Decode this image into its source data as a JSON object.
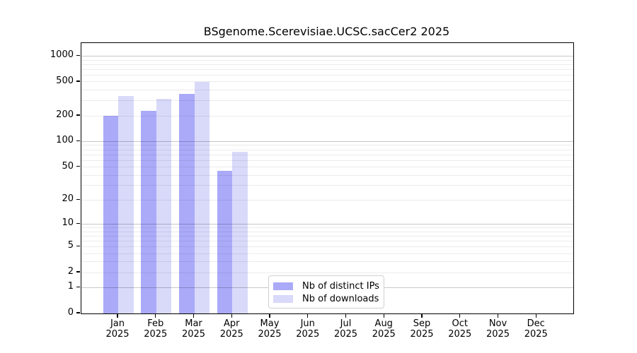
{
  "title": "BSgenome.Scerevisiae.UCSC.sacCer2 2025",
  "chart_data": {
    "type": "bar",
    "title": "BSgenome.Scerevisiae.UCSC.sacCer2 2025",
    "categories": [
      "Jan 2025",
      "Feb 2025",
      "Mar 2025",
      "Apr 2025",
      "May 2025",
      "Jun 2025",
      "Jul 2025",
      "Aug 2025",
      "Sep 2025",
      "Oct 2025",
      "Nov 2025",
      "Dec 2025"
    ],
    "series": [
      {
        "name": "Nb of distinct IPs",
        "color": "#aaaaf9",
        "values": [
          200,
          228,
          360,
          45,
          0,
          0,
          0,
          0,
          0,
          0,
          0,
          0
        ]
      },
      {
        "name": "Nb of downloads",
        "color": "#d9d9fa",
        "values": [
          345,
          316,
          500,
          75,
          0,
          0,
          0,
          0,
          0,
          0,
          0,
          0
        ]
      }
    ],
    "yscale": "log1p",
    "ylim": [
      0,
      1400
    ],
    "ytick_labels": [
      1000,
      500,
      200,
      100,
      50,
      20,
      10,
      5,
      2,
      1,
      0
    ],
    "grid": true,
    "legend_position": "lower center inside plot",
    "colors": {
      "axis": "#000000",
      "text": "#000000",
      "background": "#ffffff",
      "grid_major": "rgba(0,0,0,0.22)",
      "grid_minor": "rgba(0,0,0,0.08)",
      "legend_border": "#d0d0d0"
    }
  }
}
